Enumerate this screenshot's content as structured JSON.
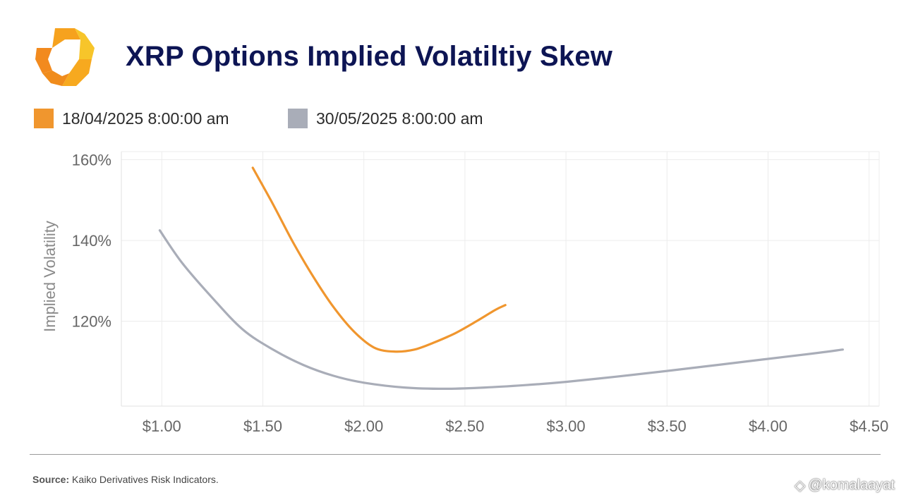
{
  "header": {
    "title": "XRP Options Implied Volatiltiy Skew"
  },
  "legend": [
    {
      "label": "18/04/2025 8:00:00 am",
      "color": "#f0962e"
    },
    {
      "label": "30/05/2025 8:00:00 am",
      "color": "#a9adb8"
    }
  ],
  "footer": {
    "source_label": "Source:",
    "source_text": "Kaiko Derivatives Risk Indicators.",
    "watermark": "@komalaayat"
  },
  "chart_data": {
    "type": "line",
    "title": "XRP Options Implied Volatiltiy Skew",
    "xlabel": "",
    "ylabel": "Implied Volatility",
    "xlim": [
      0.8,
      4.55
    ],
    "ylim": [
      99,
      162
    ],
    "x_ticks": [
      1.0,
      1.5,
      2.0,
      2.5,
      3.0,
      3.5,
      4.0,
      4.5
    ],
    "x_tick_labels": [
      "$1.00",
      "$1.50",
      "$2.00",
      "$2.50",
      "$3.00",
      "$3.50",
      "$4.00",
      "$4.50"
    ],
    "y_ticks": [
      120,
      140,
      160
    ],
    "y_tick_labels": [
      "120%",
      "140%",
      "160%"
    ],
    "grid": true,
    "legend_position": "top-left",
    "series": [
      {
        "name": "18/04/2025 8:00:00 am",
        "color": "#f0962e",
        "x": [
          1.45,
          1.55,
          1.65,
          1.75,
          1.85,
          1.95,
          2.05,
          2.15,
          2.25,
          2.35,
          2.45,
          2.55,
          2.65,
          2.7
        ],
        "y": [
          158.0,
          149.0,
          139.5,
          131.0,
          123.5,
          117.5,
          113.5,
          112.5,
          113.0,
          114.8,
          117.0,
          119.8,
          122.8,
          124.0
        ]
      },
      {
        "name": "30/05/2025 8:00:00 am",
        "color": "#a9adb8",
        "x": [
          0.99,
          1.1,
          1.25,
          1.4,
          1.55,
          1.7,
          1.85,
          2.0,
          2.2,
          2.4,
          2.6,
          2.8,
          3.0,
          3.25,
          3.5,
          3.75,
          4.0,
          4.25,
          4.37
        ],
        "y": [
          142.5,
          134.5,
          125.8,
          118.0,
          113.0,
          109.2,
          106.5,
          104.8,
          103.6,
          103.3,
          103.6,
          104.2,
          105.0,
          106.3,
          107.7,
          109.2,
          110.7,
          112.2,
          113.0
        ]
      }
    ]
  }
}
